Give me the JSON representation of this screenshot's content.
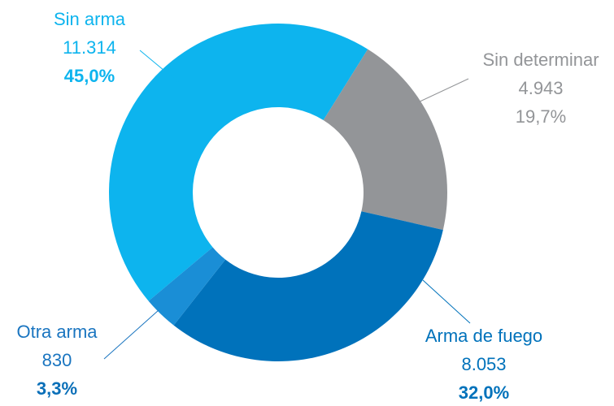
{
  "chart_data": {
    "type": "donut",
    "categories": [
      "Sin arma",
      "Sin determinar",
      "Arma de fuego",
      "Otra arma"
    ],
    "values": [
      11314,
      4943,
      8053,
      830
    ],
    "value_labels": [
      "11.314",
      "4.943",
      "8.053",
      "830"
    ],
    "percent_labels": [
      "45,0%",
      "19,7%",
      "32,0%",
      "3,3%"
    ],
    "colors": [
      "#0db4ee",
      "#939598",
      "#0072bb",
      "#1a8ed6"
    ]
  }
}
